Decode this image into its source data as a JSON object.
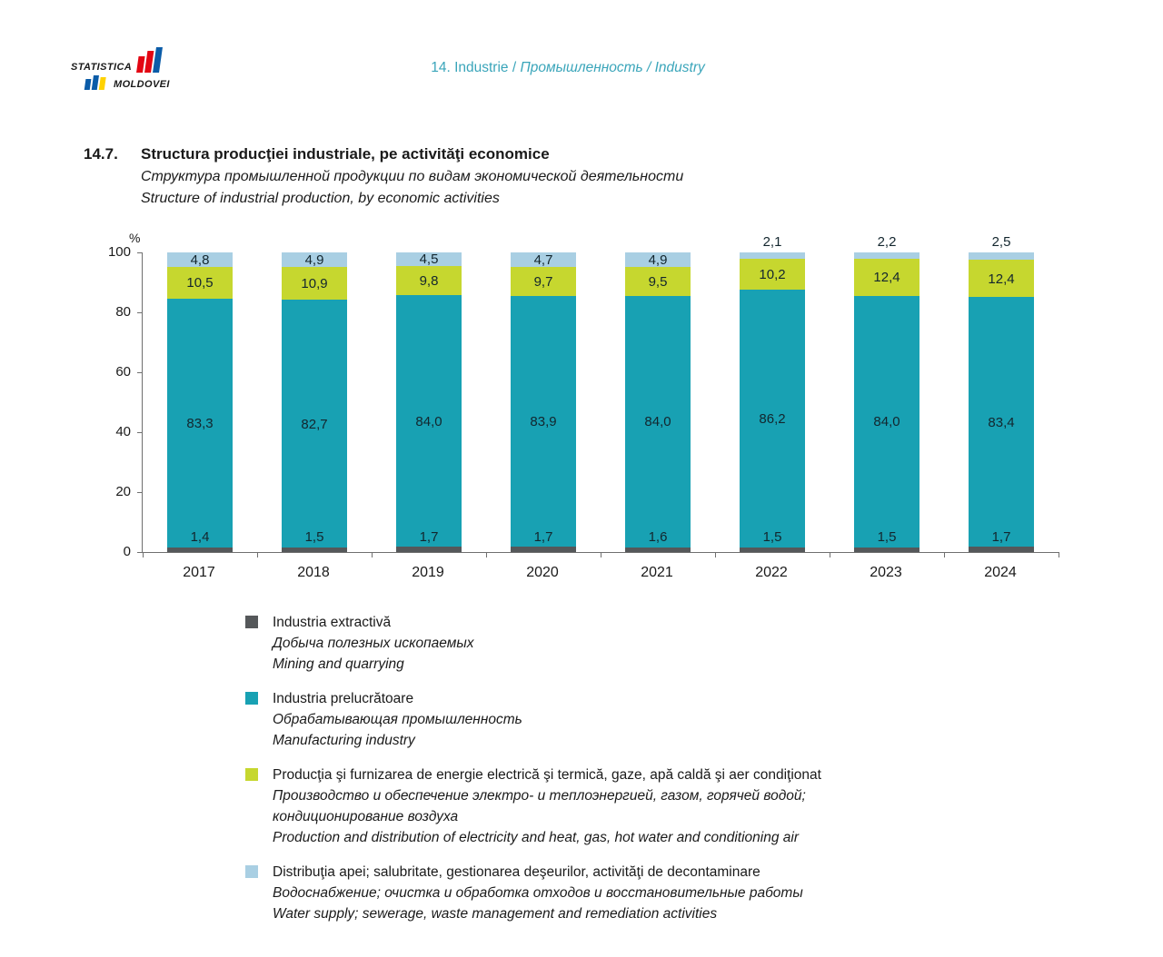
{
  "header": {
    "prefix": "14. Industrie / ",
    "ru": "Промышленность",
    "mid": " / ",
    "en": "Industry"
  },
  "logo": {
    "line1": "STATISTICA",
    "line2": "MOLDOVEI",
    "colors": {
      "red": "#e30613",
      "blue": "#0b5ca8",
      "yellow": "#ffd200"
    }
  },
  "section": {
    "number": "14.7.",
    "title": "Structura producţiei industriale, pe activităţi economice",
    "subtitle_ru": "Структура промышленной продукции по видам экономической деятельности",
    "subtitle_en": "Structure of industrial production, by economic activities"
  },
  "chart_data": {
    "type": "bar",
    "stacked": true,
    "title": "Structura producţiei industriale, pe activităţi economice",
    "ylabel": "%",
    "ylim": [
      0,
      100
    ],
    "yticks": [
      0,
      20,
      40,
      60,
      80,
      100
    ],
    "grid": false,
    "legend_position": "bottom",
    "categories": [
      "2017",
      "2018",
      "2019",
      "2020",
      "2021",
      "2022",
      "2023",
      "2024"
    ],
    "series": [
      {
        "name": "Industria extractivă",
        "color": "#55585a",
        "values": [
          1.4,
          1.5,
          1.7,
          1.7,
          1.6,
          1.5,
          1.5,
          1.7
        ]
      },
      {
        "name": "Industria prelucrătoare",
        "color": "#18a1b3",
        "values": [
          83.3,
          82.7,
          84.0,
          83.9,
          84.0,
          86.2,
          84.0,
          83.4
        ]
      },
      {
        "name": "Producţia şi furnizarea de energie electrică şi termică, gaze, apă caldă şi aer condiţionat",
        "color": "#c6d72f",
        "values": [
          10.5,
          10.9,
          9.8,
          9.7,
          9.5,
          10.2,
          12.4,
          12.4
        ]
      },
      {
        "name": "Distribuţia apei; salubritate, gestionarea deşeurilor, activităţi de decontaminare",
        "color": "#a9cfe3",
        "values": [
          4.8,
          4.9,
          4.5,
          4.7,
          4.9,
          2.1,
          2.2,
          2.5
        ]
      }
    ]
  },
  "legend": {
    "items": [
      {
        "ro": "Industria extractivă",
        "ru": "Добыча полезных ископаемых",
        "en": "Mining and quarrying"
      },
      {
        "ro": "Industria prelucrătoare",
        "ru": "Обрабатывающая промышленность",
        "en": "Manufacturing industry"
      },
      {
        "ro": "Producţia şi furnizarea de energie electrică şi termică, gaze, apă caldă şi aer condiţionat",
        "ru": "Производство и обеспечение электро- и теплоэнергией, газом, горячей водой;",
        "ru2": "кондиционирование воздуха",
        "en": "Production and distribution of electricity and heat, gas, hot water and conditioning air"
      },
      {
        "ro": "Distribuţia apei; salubritate, gestionarea deşeurilor, activităţi de decontaminare",
        "ru": "Водоснабжение; очистка и обработка отходов и восстановительные работы",
        "en": "Water supply; sewerage, waste management and remediation activities"
      }
    ]
  }
}
